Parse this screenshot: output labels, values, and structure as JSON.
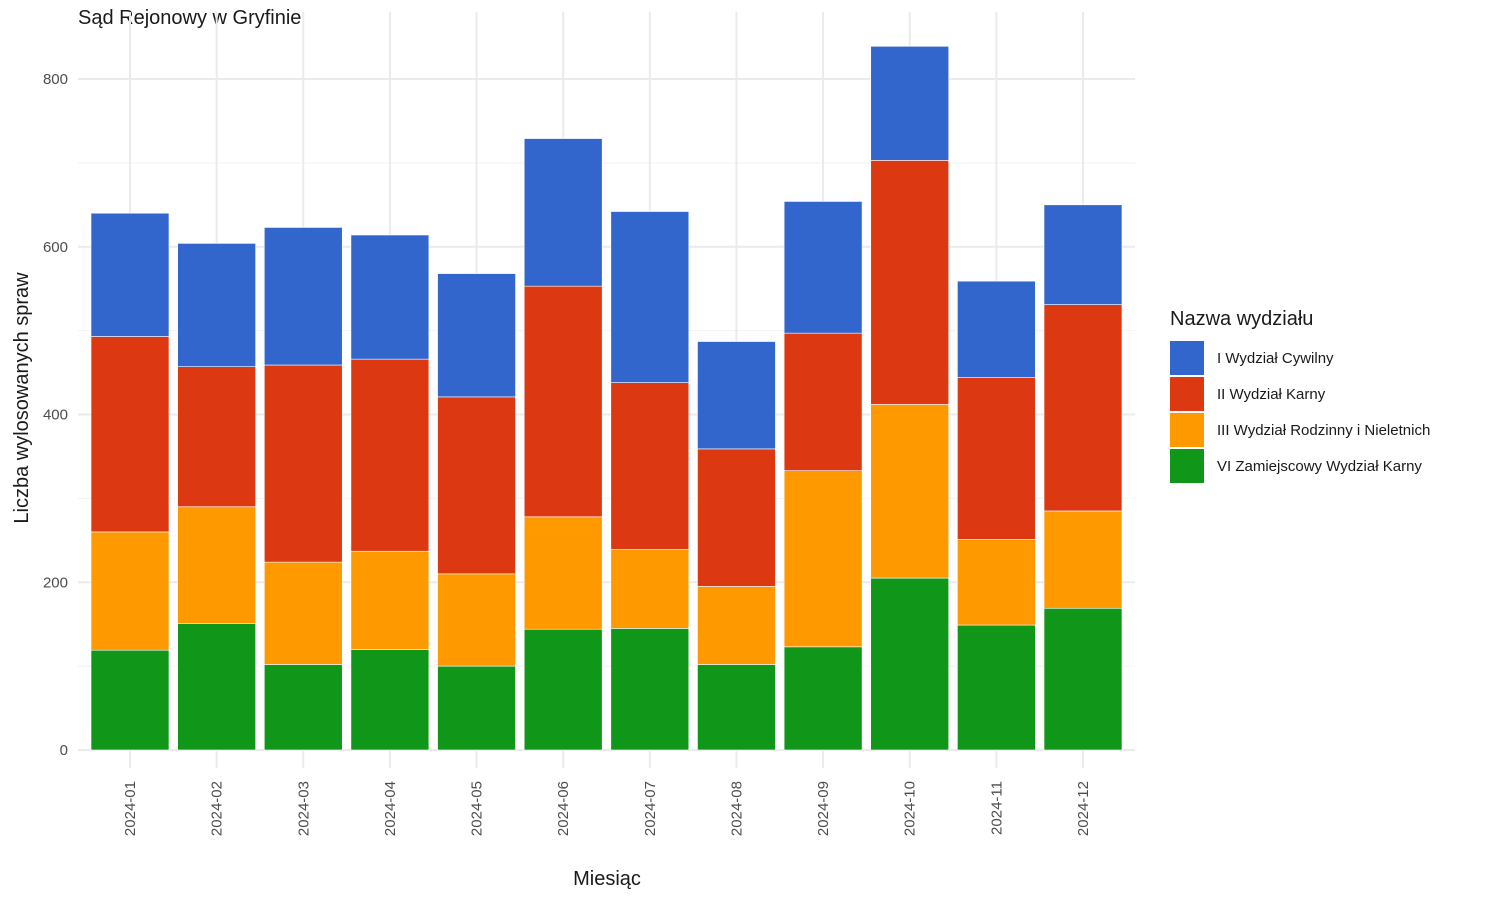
{
  "chart_data": {
    "type": "bar",
    "stacked": true,
    "title": "Sąd Rejonowy w Gryfinie",
    "xlabel": "Miesiąc",
    "ylabel": "Liczba wylosowanych spraw",
    "ylim": [
      0,
      860
    ],
    "yticks": [
      0,
      200,
      400,
      600,
      800
    ],
    "grid": true,
    "legend_title": "Nazwa wydziału",
    "legend_position": "right",
    "categories": [
      "2024-01",
      "2024-02",
      "2024-03",
      "2024-04",
      "2024-05",
      "2024-06",
      "2024-07",
      "2024-08",
      "2024-09",
      "2024-10",
      "2024-11",
      "2024-12"
    ],
    "series": [
      {
        "name": "VI Zamiejscowy Wydział Karny",
        "color": "#109618",
        "values": [
          119,
          151,
          102,
          120,
          100,
          144,
          145,
          102,
          123,
          205,
          149,
          169
        ]
      },
      {
        "name": "III Wydział Rodzinny i Nieletnich",
        "color": "#ff9900",
        "values": [
          141,
          139,
          122,
          117,
          110,
          134,
          94,
          93,
          210,
          207,
          102,
          116
        ]
      },
      {
        "name": "II Wydział Karny",
        "color": "#dc3912",
        "values": [
          233,
          167,
          235,
          229,
          211,
          275,
          199,
          164,
          164,
          291,
          193,
          246
        ]
      },
      {
        "name": "I Wydział Cywilny",
        "color": "#3366cc",
        "values": [
          147,
          147,
          164,
          148,
          147,
          176,
          204,
          128,
          157,
          136,
          115,
          119
        ]
      }
    ],
    "legend_order": [
      "I Wydział Cywilny",
      "II Wydział Karny",
      "III Wydział Rodzinny i Nieletnich",
      "VI Zamiejscowy Wydział Karny"
    ]
  }
}
